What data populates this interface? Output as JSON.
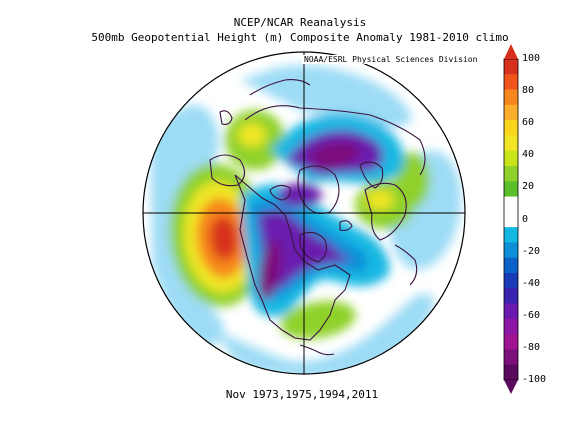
{
  "title": {
    "line1": "NCEP/NCAR Reanalysis",
    "line2": "500mb Geopotential Height (m) Composite Anomaly 1981-2010 climo"
  },
  "credit": "NOAA/ESRL Physical Sciences Division",
  "footer": "Nov 1973,1975,1994,2011",
  "colorbar": {
    "ticks": [
      "100",
      "80",
      "60",
      "40",
      "20",
      "0",
      "-20",
      "-40",
      "-60",
      "-80",
      "-100"
    ],
    "colors_top_to_bottom": [
      "#d7301f",
      "#f0541a",
      "#f7861d",
      "#fbae29",
      "#fbd51c",
      "#f0e626",
      "#c8e41a",
      "#8fd12a",
      "#5bbf2a",
      "#ffffff",
      "#ffffff",
      "#13b8e3",
      "#0d8fd8",
      "#0d62c9",
      "#1a3bb8",
      "#3a22b0",
      "#6a1aae",
      "#8e16a6",
      "#a01494",
      "#7d0f7c",
      "#5a0a5e"
    ]
  },
  "map": {
    "projection": "north-polar-stereographic",
    "colors": {
      "ocean_light_blue": "#9ddcf5",
      "cyan": "#13b8e3",
      "blue": "#0d8fd8",
      "purple": "#6a1aae",
      "dark_purple": "#7d0f7c",
      "green": "#8fd12a",
      "yellow": "#f0e626",
      "orange": "#f7861d",
      "red": "#d7301f",
      "coast": "#3a1440"
    },
    "features": [
      {
        "name": "pacific-ridge",
        "sign": "positive",
        "max_anomaly": 100
      },
      {
        "name": "north-america-trough",
        "sign": "negative",
        "min_anomaly": -100
      },
      {
        "name": "siberia-trough",
        "sign": "negative",
        "min_anomaly": -80
      },
      {
        "name": "atlantic-ridge",
        "sign": "positive",
        "max_anomaly": 20
      },
      {
        "name": "europe-ridge",
        "sign": "positive",
        "max_anomaly": 40
      }
    ]
  }
}
